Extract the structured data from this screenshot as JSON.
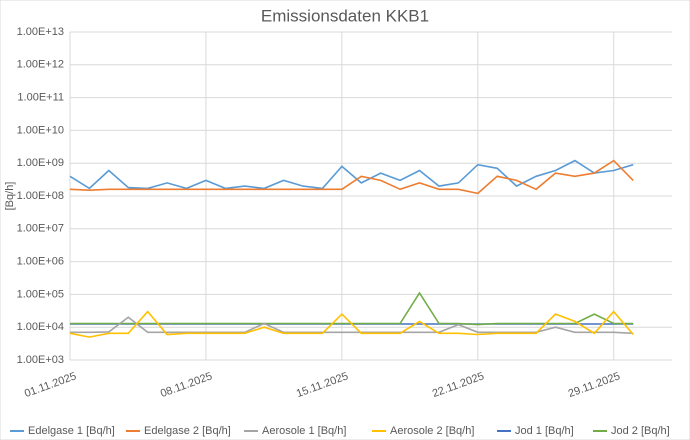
{
  "chart_data": {
    "type": "line",
    "title": "Emissionsdaten KKB1",
    "y_label": "[Bq/h]",
    "log_scale": true,
    "grid": true,
    "legend": "bottom",
    "x": [
      "01.11.2025",
      "02.11.2025",
      "03.11.2025",
      "04.11.2025",
      "05.11.2025",
      "06.11.2025",
      "07.11.2025",
      "08.11.2025",
      "09.11.2025",
      "10.11.2025",
      "11.11.2025",
      "12.11.2025",
      "13.11.2025",
      "14.11.2025",
      "15.11.2025",
      "16.11.2025",
      "17.11.2025",
      "18.11.2025",
      "19.11.2025",
      "20.11.2025",
      "21.11.2025",
      "22.11.2025",
      "23.11.2025",
      "24.11.2025",
      "25.11.2025",
      "26.11.2025",
      "27.11.2025",
      "28.11.2025",
      "29.11.2025",
      "30.11.2025"
    ],
    "xticks": [
      "01.11.2025",
      "08.11.2025",
      "15.11.2025",
      "22.11.2025",
      "29.11.2025"
    ],
    "ylim": [
      1000,
      10000000000000
    ],
    "yticks": [
      {
        "value": 1000,
        "label": "1.00E+03"
      },
      {
        "value": 10000,
        "label": "1.00E+04"
      },
      {
        "value": 100000,
        "label": "1.00E+05"
      },
      {
        "value": 1000000,
        "label": "1.00E+06"
      },
      {
        "value": 10000000,
        "label": "1.00E+07"
      },
      {
        "value": 100000000,
        "label": "1.00E+08"
      },
      {
        "value": 1000000000,
        "label": "1.00E+09"
      },
      {
        "value": 10000000000,
        "label": "1.00E+10"
      },
      {
        "value": 100000000000,
        "label": "1.00E+11"
      },
      {
        "value": 1000000000000,
        "label": "1.00E+12"
      },
      {
        "value": 10000000000000,
        "label": "1.00E+13"
      }
    ],
    "series": [
      {
        "name": "Edelgase 1 [Bq/h]",
        "color": "#5b9bd5",
        "values": [
          400000000,
          170000000,
          600000000,
          180000000,
          170000000,
          250000000,
          170000000,
          300000000,
          170000000,
          200000000,
          170000000,
          300000000,
          200000000,
          170000000,
          800000000,
          250000000,
          500000000,
          300000000,
          600000000,
          200000000,
          250000000,
          900000000,
          700000000,
          200000000,
          400000000,
          600000000,
          1200000000,
          500000000,
          600000000,
          900000000
        ]
      },
      {
        "name": "Edelgase 2 [Bq/h]",
        "color": "#ed7d31",
        "values": [
          160000000,
          150000000,
          160000000,
          160000000,
          160000000,
          160000000,
          160000000,
          160000000,
          160000000,
          160000000,
          160000000,
          160000000,
          160000000,
          160000000,
          160000000,
          400000000,
          300000000,
          160000000,
          250000000,
          160000000,
          160000000,
          120000000,
          400000000,
          300000000,
          160000000,
          500000000,
          400000000,
          500000000,
          1200000000,
          300000000
        ]
      },
      {
        "name": "Aerosole 1 [Bq/h]",
        "color": "#a5a5a5",
        "values": [
          7000,
          7000,
          7200,
          20000,
          7000,
          7000,
          7000,
          7000,
          7000,
          7000,
          13000,
          7000,
          7000,
          7000,
          7000,
          7000,
          7000,
          7000,
          7000,
          7000,
          12000,
          7000,
          7000,
          7000,
          7000,
          10000,
          7000,
          7000,
          7000,
          6500
        ]
      },
      {
        "name": "Aerosole 2 [Bq/h]",
        "color": "#ffc000",
        "values": [
          6500,
          5000,
          6500,
          6500,
          30000,
          6000,
          6500,
          6500,
          6500,
          6500,
          10000,
          6500,
          6500,
          6500,
          25000,
          6500,
          6500,
          6500,
          15000,
          6500,
          6500,
          6000,
          6500,
          6500,
          6500,
          25000,
          15000,
          6500,
          30000,
          6000
        ]
      },
      {
        "name": "Jod 1 [Bq/h]",
        "color": "#4472c4",
        "values": [
          12500,
          12500,
          12500,
          12500,
          12500,
          12500,
          12500,
          12500,
          12500,
          12500,
          12500,
          12500,
          12500,
          12500,
          12500,
          12500,
          12500,
          12500,
          12500,
          12500,
          12500,
          12500,
          12500,
          12500,
          12500,
          12500,
          12500,
          12500,
          12500,
          12500
        ]
      },
      {
        "name": "Jod 2 [Bq/h]",
        "color": "#70ad47",
        "values": [
          13000,
          13000,
          13000,
          13000,
          13000,
          13000,
          13000,
          13000,
          13000,
          13000,
          13000,
          13000,
          13000,
          13000,
          13000,
          13000,
          13000,
          13000,
          110000,
          13000,
          13000,
          12000,
          13000,
          13000,
          13000,
          13000,
          13000,
          25000,
          13000,
          13000
        ]
      }
    ]
  }
}
